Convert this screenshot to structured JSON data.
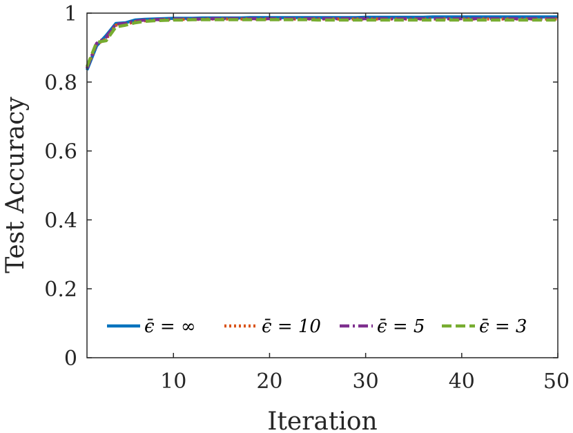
{
  "chart_data": {
    "type": "line",
    "title": "",
    "xlabel": "Iteration",
    "ylabel": "Test Accuracy",
    "xlim": [
      1,
      50
    ],
    "ylim": [
      0,
      1
    ],
    "x_ticks": [
      10,
      20,
      30,
      40,
      50
    ],
    "y_ticks": [
      0,
      0.2,
      0.4,
      0.6,
      0.8,
      1
    ],
    "x_tick_labels": [
      "10",
      "20",
      "30",
      "40",
      "50"
    ],
    "y_tick_labels": [
      "0",
      "0.2",
      "0.4",
      "0.6",
      "0.8",
      "1"
    ],
    "grid": false,
    "legend_position": "bottom",
    "x": [
      1,
      2,
      3,
      4,
      5,
      6,
      7,
      8,
      9,
      10,
      11,
      12,
      13,
      14,
      15,
      16,
      17,
      18,
      19,
      20,
      21,
      22,
      23,
      24,
      25,
      26,
      27,
      28,
      29,
      30,
      31,
      32,
      33,
      34,
      35,
      36,
      37,
      38,
      39,
      40,
      41,
      42,
      43,
      44,
      45,
      46,
      47,
      48,
      49,
      50
    ],
    "series": [
      {
        "name": "ϵ̄ = ∞",
        "color": "#0072BD",
        "dash": "solid",
        "values": [
          0.835,
          0.905,
          0.935,
          0.97,
          0.972,
          0.98,
          0.982,
          0.983,
          0.984,
          0.985,
          0.985,
          0.985,
          0.986,
          0.986,
          0.986,
          0.986,
          0.986,
          0.987,
          0.987,
          0.987,
          0.987,
          0.987,
          0.987,
          0.987,
          0.987,
          0.987,
          0.987,
          0.987,
          0.987,
          0.988,
          0.988,
          0.988,
          0.988,
          0.988,
          0.988,
          0.988,
          0.989,
          0.989,
          0.989,
          0.989,
          0.989,
          0.989,
          0.989,
          0.989,
          0.989,
          0.989,
          0.989,
          0.989,
          0.989,
          0.989
        ]
      },
      {
        "name": "ϵ̄ = 10",
        "color": "#D95319",
        "dash": "dotted",
        "values": [
          0.84,
          0.91,
          0.925,
          0.965,
          0.968,
          0.975,
          0.978,
          0.98,
          0.981,
          0.982,
          0.982,
          0.982,
          0.982,
          0.983,
          0.983,
          0.983,
          0.983,
          0.983,
          0.983,
          0.983,
          0.983,
          0.983,
          0.983,
          0.983,
          0.983,
          0.983,
          0.983,
          0.983,
          0.983,
          0.983,
          0.983,
          0.983,
          0.983,
          0.983,
          0.983,
          0.983,
          0.983,
          0.983,
          0.983,
          0.983,
          0.983,
          0.983,
          0.983,
          0.983,
          0.983,
          0.983,
          0.983,
          0.983,
          0.983,
          0.983
        ]
      },
      {
        "name": "ϵ̄ = 5",
        "color": "#7E2F8E",
        "dash": "dashdot",
        "values": [
          0.84,
          0.912,
          0.93,
          0.968,
          0.97,
          0.977,
          0.98,
          0.981,
          0.982,
          0.983,
          0.983,
          0.983,
          0.983,
          0.984,
          0.984,
          0.984,
          0.984,
          0.984,
          0.984,
          0.984,
          0.984,
          0.984,
          0.984,
          0.984,
          0.984,
          0.984,
          0.984,
          0.984,
          0.984,
          0.984,
          0.984,
          0.984,
          0.984,
          0.984,
          0.984,
          0.984,
          0.984,
          0.984,
          0.984,
          0.984,
          0.984,
          0.984,
          0.984,
          0.984,
          0.984,
          0.984,
          0.984,
          0.984,
          0.984,
          0.984
        ]
      },
      {
        "name": "ϵ̄ = 3",
        "color": "#77AC30",
        "dash": "dashed",
        "values": [
          0.845,
          0.915,
          0.92,
          0.96,
          0.965,
          0.972,
          0.976,
          0.978,
          0.979,
          0.98,
          0.98,
          0.981,
          0.981,
          0.981,
          0.981,
          0.981,
          0.981,
          0.981,
          0.981,
          0.981,
          0.981,
          0.981,
          0.981,
          0.981,
          0.98,
          0.98,
          0.98,
          0.98,
          0.98,
          0.98,
          0.98,
          0.98,
          0.98,
          0.98,
          0.98,
          0.98,
          0.98,
          0.98,
          0.98,
          0.98,
          0.98,
          0.98,
          0.98,
          0.98,
          0.98,
          0.98,
          0.98,
          0.98,
          0.98,
          0.98
        ]
      }
    ]
  }
}
